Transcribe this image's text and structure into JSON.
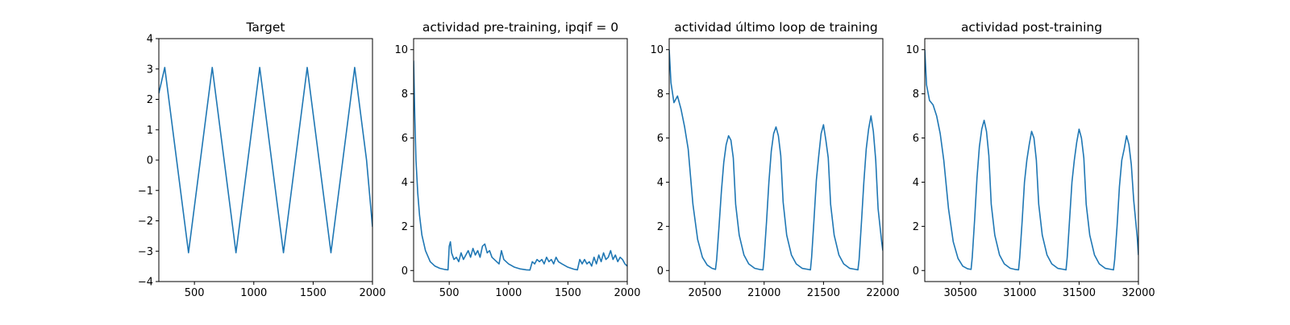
{
  "figure": {
    "line_color": "#1f77b4",
    "axes_color": "#000000",
    "background": "#ffffff"
  },
  "chart_data": [
    {
      "type": "line",
      "title": "Target",
      "xlabel": "",
      "ylabel": "",
      "xlim": [
        200,
        2000
      ],
      "ylim": [
        -4,
        4
      ],
      "xticks": [
        500,
        1000,
        1500,
        2000
      ],
      "yticks": [
        -4,
        -3,
        -2,
        -1,
        0,
        1,
        2,
        3,
        4
      ],
      "series": [
        {
          "x": [
            200,
            250,
            350,
            450,
            550,
            650,
            750,
            850,
            950,
            1050,
            1150,
            1250,
            1350,
            1450,
            1550,
            1650,
            1750,
            1850,
            1950,
            2000
          ],
          "y": [
            2.2,
            3.05,
            0.0,
            -3.05,
            0.0,
            3.05,
            0.0,
            -3.05,
            0.0,
            3.05,
            0.0,
            -3.05,
            0.0,
            3.05,
            0.0,
            -3.05,
            0.0,
            3.05,
            0.0,
            -2.2
          ]
        }
      ]
    },
    {
      "type": "line",
      "title": "actividad pre-training, ipqif = 0",
      "xlabel": "",
      "ylabel": "",
      "xlim": [
        200,
        2000
      ],
      "ylim": [
        -0.5,
        10.5
      ],
      "xticks": [
        500,
        1000,
        1500,
        2000
      ],
      "yticks": [
        0,
        2,
        4,
        6,
        8,
        10
      ],
      "series": [
        {
          "x": [
            200,
            210,
            220,
            235,
            250,
            270,
            300,
            340,
            380,
            420,
            460,
            490,
            500,
            510,
            520,
            540,
            560,
            580,
            600,
            620,
            640,
            660,
            680,
            700,
            720,
            740,
            760,
            780,
            800,
            820,
            840,
            860,
            880,
            900,
            920,
            940,
            960,
            980,
            1000,
            1050,
            1100,
            1150,
            1180,
            1200,
            1220,
            1240,
            1260,
            1280,
            1300,
            1320,
            1340,
            1360,
            1380,
            1400,
            1420,
            1450,
            1500,
            1550,
            1580,
            1600,
            1620,
            1640,
            1660,
            1680,
            1700,
            1720,
            1740,
            1760,
            1780,
            1800,
            1820,
            1840,
            1860,
            1880,
            1900,
            1920,
            1940,
            1960,
            1980,
            2000
          ],
          "y": [
            9.5,
            7.0,
            5.0,
            3.5,
            2.5,
            1.6,
            0.9,
            0.4,
            0.2,
            0.1,
            0.05,
            0.03,
            1.1,
            1.3,
            0.8,
            0.5,
            0.6,
            0.4,
            0.8,
            0.5,
            0.7,
            0.9,
            0.6,
            1.0,
            0.7,
            0.9,
            0.6,
            1.1,
            1.2,
            0.8,
            0.9,
            0.6,
            0.5,
            0.4,
            0.3,
            0.9,
            0.5,
            0.4,
            0.3,
            0.15,
            0.07,
            0.03,
            0.02,
            0.4,
            0.3,
            0.5,
            0.4,
            0.5,
            0.3,
            0.6,
            0.4,
            0.5,
            0.3,
            0.6,
            0.4,
            0.3,
            0.15,
            0.06,
            0.03,
            0.5,
            0.3,
            0.5,
            0.3,
            0.4,
            0.2,
            0.6,
            0.3,
            0.7,
            0.4,
            0.8,
            0.5,
            0.6,
            0.9,
            0.5,
            0.7,
            0.4,
            0.6,
            0.5,
            0.3,
            0.2
          ]
        }
      ]
    },
    {
      "type": "line",
      "title": "actividad último loop de training",
      "xlabel": "",
      "ylabel": "",
      "xlim": [
        20200,
        22000
      ],
      "ylim": [
        -0.5,
        10.5
      ],
      "xticks": [
        20500,
        21000,
        21500,
        22000
      ],
      "yticks": [
        0,
        2,
        4,
        6,
        8,
        10
      ],
      "series": [
        {
          "x": [
            20200,
            20215,
            20240,
            20270,
            20300,
            20330,
            20360,
            20400,
            20440,
            20480,
            20520,
            20560,
            20590,
            20600,
            20620,
            20640,
            20660,
            20680,
            20700,
            20720,
            20740,
            20760,
            20790,
            20830,
            20870,
            20920,
            20960,
            20990,
            21000,
            21020,
            21040,
            21060,
            21080,
            21100,
            21120,
            21140,
            21160,
            21190,
            21230,
            21270,
            21320,
            21370,
            21390,
            21400,
            21420,
            21440,
            21460,
            21480,
            21500,
            21520,
            21540,
            21560,
            21590,
            21630,
            21670,
            21720,
            21770,
            21790,
            21800,
            21820,
            21840,
            21860,
            21880,
            21900,
            21920,
            21940,
            21960,
            21990,
            22000
          ],
          "y": [
            10.0,
            8.5,
            7.6,
            7.9,
            7.3,
            6.5,
            5.5,
            3.0,
            1.4,
            0.6,
            0.25,
            0.1,
            0.05,
            0.5,
            2.0,
            3.6,
            4.9,
            5.7,
            6.1,
            5.9,
            5.1,
            3.0,
            1.6,
            0.7,
            0.3,
            0.1,
            0.05,
            0.03,
            0.6,
            2.2,
            4.0,
            5.4,
            6.2,
            6.5,
            6.1,
            5.2,
            3.1,
            1.6,
            0.7,
            0.3,
            0.1,
            0.05,
            0.03,
            0.6,
            2.3,
            4.1,
            5.2,
            6.2,
            6.6,
            5.9,
            5.1,
            3.0,
            1.6,
            0.7,
            0.3,
            0.1,
            0.05,
            0.03,
            0.5,
            2.2,
            4.0,
            5.5,
            6.4,
            7.0,
            6.3,
            5.0,
            2.8,
            1.3,
            0.9
          ]
        }
      ]
    },
    {
      "type": "line",
      "title": "actividad post-training",
      "xlabel": "",
      "ylabel": "",
      "xlim": [
        30200,
        32000
      ],
      "ylim": [
        -0.5,
        10.5
      ],
      "xticks": [
        30500,
        31000,
        31500,
        32000
      ],
      "yticks": [
        0,
        2,
        4,
        6,
        8,
        10
      ],
      "series": [
        {
          "x": [
            30200,
            30215,
            30240,
            30270,
            30300,
            30330,
            30360,
            30400,
            30440,
            30480,
            30520,
            30560,
            30590,
            30600,
            30620,
            30640,
            30660,
            30680,
            30700,
            30720,
            30740,
            30760,
            30790,
            30830,
            30870,
            30920,
            30960,
            30990,
            31000,
            31020,
            31040,
            31060,
            31080,
            31100,
            31120,
            31140,
            31160,
            31190,
            31230,
            31270,
            31320,
            31370,
            31390,
            31400,
            31420,
            31440,
            31460,
            31480,
            31500,
            31520,
            31540,
            31560,
            31590,
            31630,
            31670,
            31720,
            31770,
            31790,
            31800,
            31820,
            31840,
            31860,
            31880,
            31900,
            31920,
            31940,
            31960,
            31990,
            32000
          ],
          "y": [
            10.0,
            8.4,
            7.7,
            7.5,
            7.0,
            6.2,
            5.0,
            2.8,
            1.3,
            0.55,
            0.2,
            0.08,
            0.05,
            0.6,
            2.3,
            4.2,
            5.6,
            6.4,
            6.8,
            6.3,
            5.2,
            3.0,
            1.6,
            0.7,
            0.3,
            0.1,
            0.05,
            0.03,
            0.6,
            2.2,
            4.0,
            5.0,
            5.7,
            6.3,
            6.0,
            5.0,
            3.0,
            1.6,
            0.7,
            0.3,
            0.1,
            0.05,
            0.03,
            0.6,
            2.3,
            4.0,
            5.0,
            5.8,
            6.4,
            6.0,
            5.1,
            3.0,
            1.6,
            0.7,
            0.3,
            0.1,
            0.05,
            0.03,
            0.5,
            2.0,
            3.8,
            5.0,
            5.5,
            6.1,
            5.7,
            4.8,
            3.2,
            1.5,
            0.7
          ]
        }
      ]
    }
  ]
}
